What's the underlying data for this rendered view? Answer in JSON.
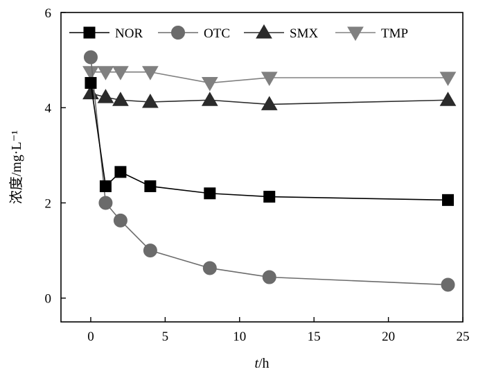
{
  "chart_data": {
    "type": "line",
    "title": "",
    "xlabel": "t/h",
    "ylabel": "浓度/mg·L⁻¹",
    "xlim": [
      -2,
      25
    ],
    "ylim": [
      -0.5,
      6
    ],
    "xticks": [
      0,
      5,
      10,
      15,
      20,
      25
    ],
    "yticks": [
      0,
      2,
      4,
      6
    ],
    "grid": false,
    "legend_position": "top",
    "series": [
      {
        "name": "NOR",
        "marker": "square",
        "color": "#000000",
        "x": [
          0,
          1,
          2,
          4,
          8,
          12,
          24
        ],
        "y": [
          4.52,
          2.35,
          2.65,
          2.35,
          2.2,
          2.13,
          2.06
        ]
      },
      {
        "name": "OTC",
        "marker": "circle",
        "color": "#6b6b6b",
        "x": [
          0,
          1,
          2,
          4,
          8,
          12,
          24
        ],
        "y": [
          5.06,
          2.0,
          1.63,
          1.0,
          0.63,
          0.44,
          0.28
        ]
      },
      {
        "name": "SMX",
        "marker": "triangle-up",
        "color": "#2b2b2b",
        "x": [
          0,
          1,
          2,
          4,
          8,
          12,
          24
        ],
        "y": [
          4.3,
          4.22,
          4.16,
          4.12,
          4.16,
          4.07,
          4.16
        ]
      },
      {
        "name": "TMP",
        "marker": "triangle-down",
        "color": "#808080",
        "x": [
          0,
          1,
          2,
          4,
          8,
          12,
          24
        ],
        "y": [
          4.75,
          4.75,
          4.75,
          4.75,
          4.52,
          4.63,
          4.63
        ]
      }
    ]
  }
}
